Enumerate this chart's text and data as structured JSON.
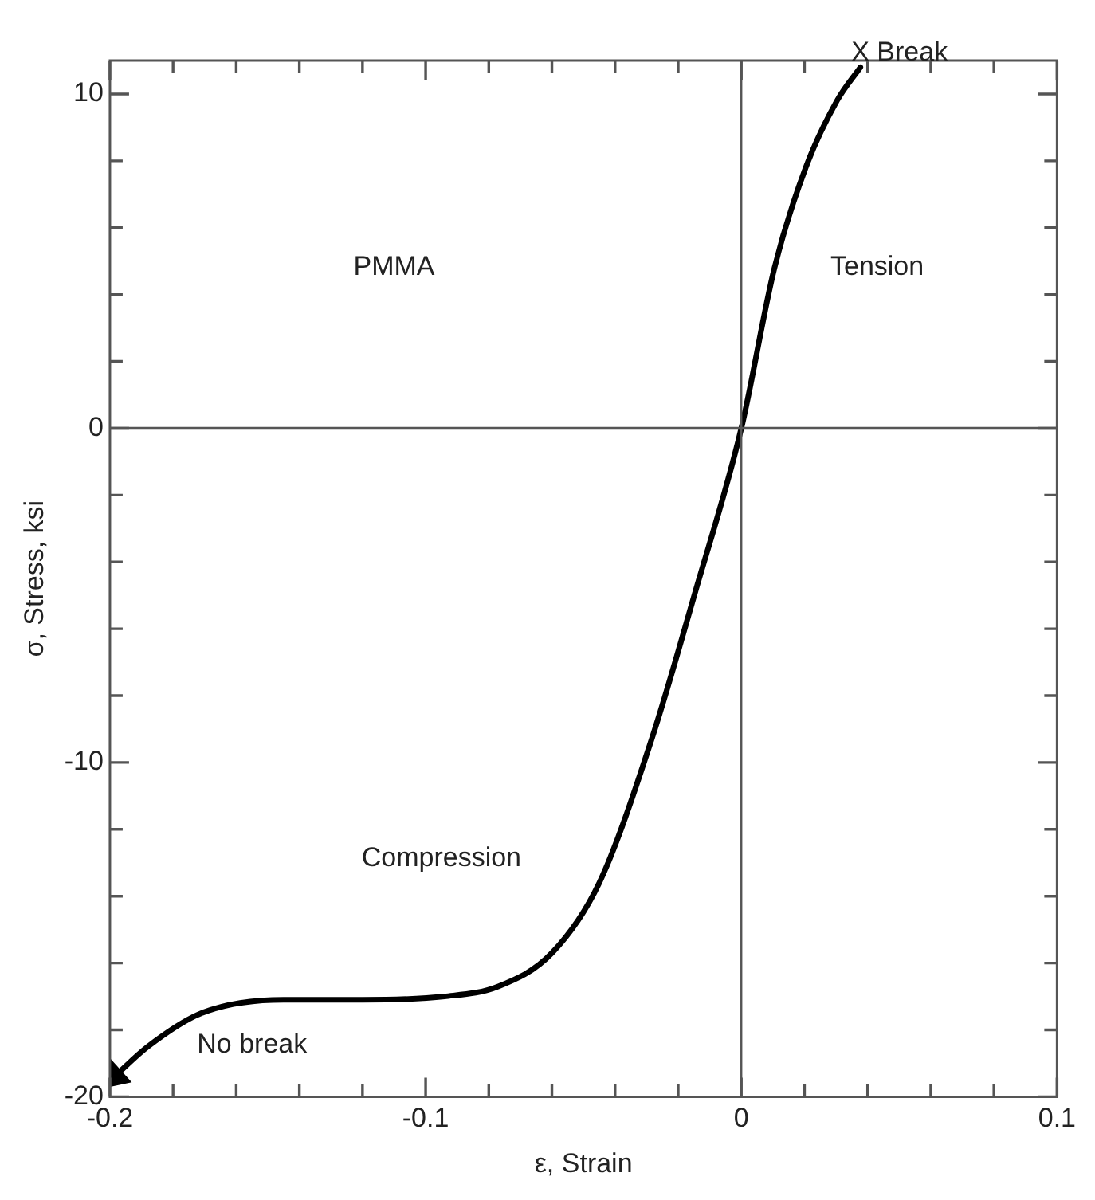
{
  "chart_data": {
    "type": "line",
    "xlabel": "ε, Strain",
    "ylabel": "σ, Stress, ksi",
    "x": [
      -0.1986,
      -0.188,
      -0.171,
      -0.145,
      -0.12,
      -0.094,
      -0.077,
      -0.06,
      -0.045,
      -0.0284,
      -0.0146,
      0,
      0.0105,
      0.0204,
      0.0303,
      0.0377
    ],
    "series": [
      {
        "color": "#000000",
        "values": [
          -19.4,
          -18.5,
          -17.5,
          -17.1,
          -17.1,
          -17.0,
          -16.7,
          -15.7,
          -13.6,
          -9.3,
          -4.9,
          0,
          4.8,
          7.8,
          9.8,
          10.8
        ]
      }
    ],
    "xlim": [
      -0.2,
      0.1
    ],
    "ylim": [
      -20,
      11
    ],
    "xticks": [
      -0.2,
      {
        "value": -0.18,
        "label": null
      },
      {
        "value": -0.16,
        "label": null
      },
      {
        "value": -0.14,
        "label": null
      },
      {
        "value": -0.12,
        "label": null
      },
      -0.1,
      {
        "value": -0.08,
        "label": null
      },
      {
        "value": -0.06,
        "label": null
      },
      {
        "value": -0.04,
        "label": null
      },
      {
        "value": -0.02,
        "label": null
      },
      0,
      {
        "value": 0.02,
        "label": null
      },
      {
        "value": 0.04,
        "label": null
      },
      {
        "value": 0.06,
        "label": null
      },
      {
        "value": 0.08,
        "label": null
      },
      0.1
    ],
    "yticks": [
      -20,
      {
        "value": -18,
        "label": null
      },
      {
        "value": -16,
        "label": null
      },
      {
        "value": -14,
        "label": null
      },
      {
        "value": -12,
        "label": null
      },
      -10,
      {
        "value": -8,
        "label": null
      },
      {
        "value": -6,
        "label": null
      },
      {
        "value": -4,
        "label": null
      },
      {
        "value": -2,
        "label": null
      },
      0,
      {
        "value": 2,
        "label": null
      },
      {
        "value": 4,
        "label": null
      },
      {
        "value": 6,
        "label": null
      },
      {
        "value": 8,
        "label": null
      },
      10
    ],
    "ref_lines": [
      {
        "axis": "x",
        "value": 0
      },
      {
        "axis": "y",
        "value": 0
      }
    ],
    "annotations": [
      "PMMA",
      "Tension",
      "Compression",
      "No break",
      {
        "text": "X Break",
        "x": 0.0377,
        "y": 10.8
      }
    ],
    "grid": false,
    "legend": false,
    "marker": "none",
    "line_style": "solid"
  }
}
